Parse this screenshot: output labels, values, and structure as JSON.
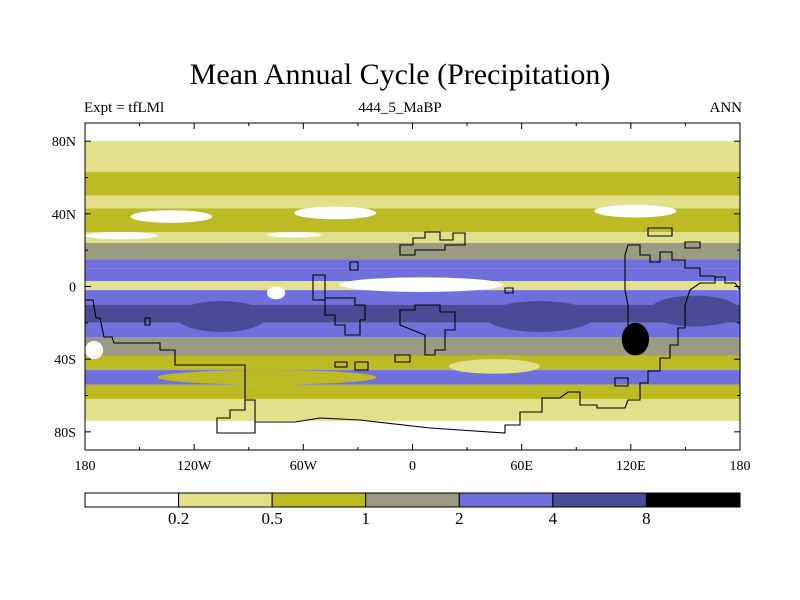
{
  "title": "Mean Annual Cycle (Precipitation)",
  "subtitle_left": "Expt = tfLMl",
  "subtitle_center": "444_5_MaBP",
  "subtitle_right": "ANN",
  "chart_data": {
    "type": "heatmap",
    "variable": "Precipitation",
    "season": "ANN",
    "xlim": [
      -180,
      180
    ],
    "ylim": [
      -90,
      90
    ],
    "x_ticks": [
      {
        "value": -180,
        "label": "180"
      },
      {
        "value": -120,
        "label": "120W"
      },
      {
        "value": -60,
        "label": "60W"
      },
      {
        "value": 0,
        "label": "0"
      },
      {
        "value": 60,
        "label": "60E"
      },
      {
        "value": 120,
        "label": "120E"
      },
      {
        "value": 180,
        "label": "180"
      }
    ],
    "y_ticks": [
      {
        "value": 80,
        "label": "80N"
      },
      {
        "value": 40,
        "label": "40N"
      },
      {
        "value": 0,
        "label": "0"
      },
      {
        "value": -40,
        "label": "40S"
      },
      {
        "value": -80,
        "label": "80S"
      }
    ],
    "colorbar": {
      "colors": [
        "#ffffff",
        "#e2e08a",
        "#bcbb24",
        "#9b9a82",
        "#7070dd",
        "#4a4a96",
        "#000000"
      ],
      "levels": [
        "0.2",
        "0.5",
        "1",
        "2",
        "4",
        "8"
      ]
    },
    "lat_bands": [
      {
        "lat_top": 90,
        "lat_bottom": 80,
        "level": 0
      },
      {
        "lat_top": 80,
        "lat_bottom": 63,
        "level": 1
      },
      {
        "lat_top": 63,
        "lat_bottom": 50,
        "level": 2
      },
      {
        "lat_top": 50,
        "lat_bottom": 43,
        "level": 1
      },
      {
        "lat_top": 43,
        "lat_bottom": 30,
        "level": 2
      },
      {
        "lat_top": 30,
        "lat_bottom": 24,
        "level": 1
      },
      {
        "lat_top": 24,
        "lat_bottom": 15,
        "level": 3
      },
      {
        "lat_top": 15,
        "lat_bottom": 10,
        "level": 4
      },
      {
        "lat_top": 10,
        "lat_bottom": 3,
        "level": 4
      },
      {
        "lat_top": 3,
        "lat_bottom": -2,
        "level": 1
      },
      {
        "lat_top": -2,
        "lat_bottom": -10,
        "level": 4
      },
      {
        "lat_top": -10,
        "lat_bottom": -20,
        "level": 5
      },
      {
        "lat_top": -20,
        "lat_bottom": -28,
        "level": 4
      },
      {
        "lat_top": -28,
        "lat_bottom": -38,
        "level": 3
      },
      {
        "lat_top": -38,
        "lat_bottom": -46,
        "level": 2
      },
      {
        "lat_top": -46,
        "lat_bottom": -54,
        "level": 4
      },
      {
        "lat_top": -54,
        "lat_bottom": -62,
        "level": 2
      },
      {
        "lat_top": -62,
        "lat_bottom": -74,
        "level": 1
      },
      {
        "lat_top": -74,
        "lat_bottom": -90,
        "level": 0
      }
    ],
    "patches": [
      {
        "lon1": -155,
        "lat1": 42,
        "lon2": -110,
        "lat2": 35,
        "level": 0
      },
      {
        "lon1": -65,
        "lat1": 44,
        "lon2": -20,
        "lat2": 37,
        "level": 0
      },
      {
        "lon1": 100,
        "lat1": 45,
        "lon2": 145,
        "lat2": 38,
        "level": 0
      },
      {
        "lon1": 158,
        "lat1": 50,
        "lon2": 180,
        "lat2": 44,
        "level": 1
      },
      {
        "lon1": -180,
        "lat1": 30,
        "lon2": -140,
        "lat2": 26,
        "level": 0
      },
      {
        "lon1": -80,
        "lat1": 30,
        "lon2": -50,
        "lat2": 27,
        "level": 0
      },
      {
        "lon1": -40,
        "lat1": 5,
        "lon2": 50,
        "lat2": -3,
        "level": 0
      },
      {
        "lon1": -120,
        "lat1": 3,
        "lon2": -40,
        "lat2": -2,
        "level": 1
      },
      {
        "lon1": -130,
        "lat1": -8,
        "lon2": -80,
        "lat2": -25,
        "level": 5
      },
      {
        "lon1": 40,
        "lat1": -8,
        "lon2": 100,
        "lat2": -25,
        "level": 5
      },
      {
        "lon1": 130,
        "lat1": -5,
        "lon2": 180,
        "lat2": -22,
        "level": 5
      },
      {
        "lon1": -180,
        "lat1": -30,
        "lon2": -170,
        "lat2": -40,
        "level": 0
      },
      {
        "lon1": -140,
        "lat1": -46,
        "lon2": -20,
        "lat2": -54,
        "level": 2
      },
      {
        "lon1": 115,
        "lat1": -20,
        "lon2": 130,
        "lat2": -38,
        "level": 6
      },
      {
        "lon1": -80,
        "lat1": 0,
        "lon2": -70,
        "lat2": -7,
        "level": 0
      },
      {
        "lon1": 20,
        "lat1": -40,
        "lon2": 70,
        "lat2": -48,
        "level": 1
      }
    ]
  }
}
